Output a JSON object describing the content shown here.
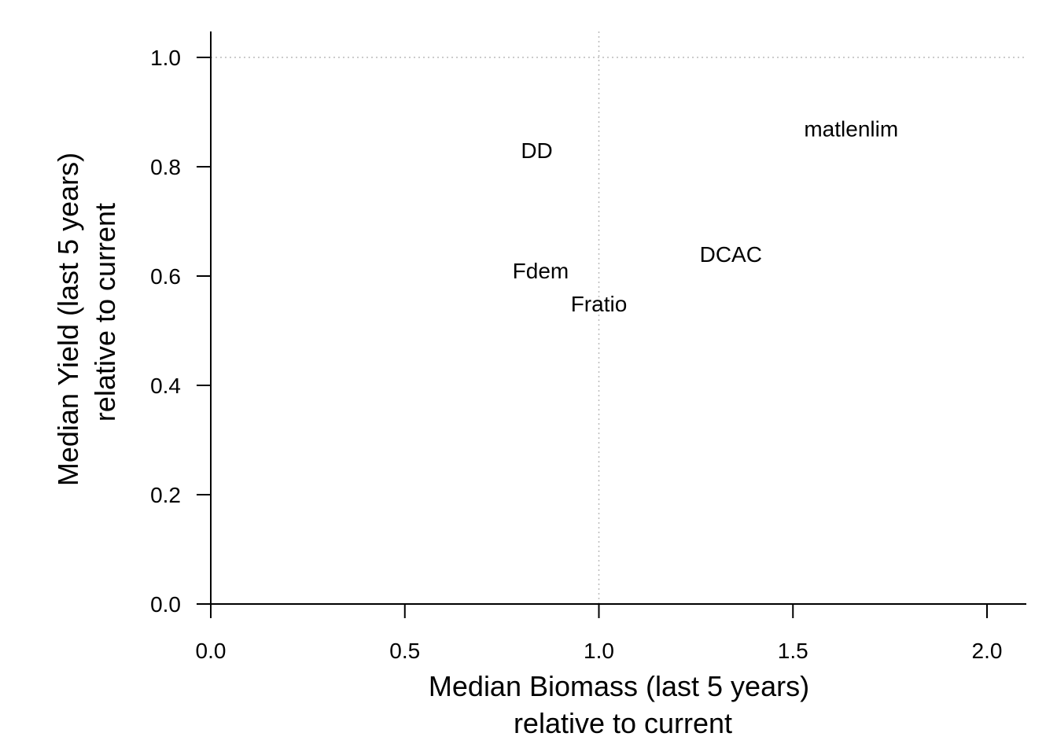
{
  "chart_data": {
    "type": "scatter",
    "title": "",
    "xlabel": [
      "Median Biomass (last 5 years)",
      "relative to current"
    ],
    "ylabel": [
      "Median Yield (last 5 years)",
      "relative to current"
    ],
    "xlim": [
      0,
      2.1
    ],
    "ylim": [
      0,
      1.0
    ],
    "x_ticks": [
      "0.0",
      "0.5",
      "1.0",
      "1.5",
      "2.0"
    ],
    "y_ticks": [
      "0.0",
      "0.2",
      "0.4",
      "0.6",
      "0.8",
      "1.0"
    ],
    "reference_lines": {
      "x": 1.0,
      "y": 1.0,
      "style": "dotted",
      "color": "#bbbbbb"
    },
    "points": [
      {
        "label": "DD",
        "x": 0.84,
        "y": 0.83
      },
      {
        "label": "matlenlim",
        "x": 1.65,
        "y": 0.87
      },
      {
        "label": "DCAC",
        "x": 1.34,
        "y": 0.64
      },
      {
        "label": "Fdem",
        "x": 0.85,
        "y": 0.61
      },
      {
        "label": "Fratio",
        "x": 1.0,
        "y": 0.55
      }
    ]
  }
}
